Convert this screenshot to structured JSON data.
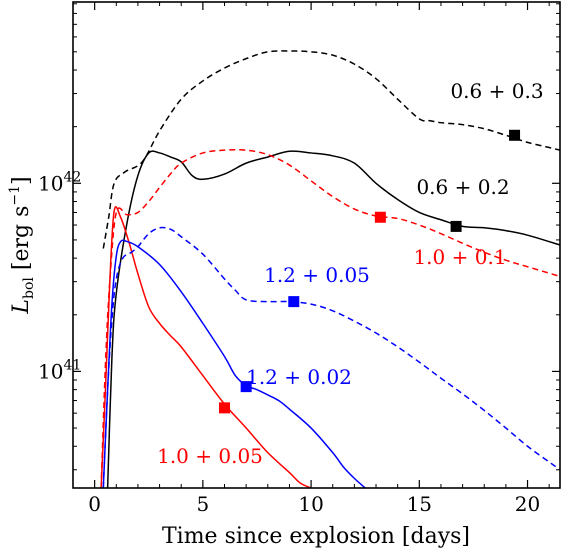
{
  "chart_data": {
    "type": "line",
    "title": "",
    "xlabel": "Time since explosion [days]",
    "ylabel_main": "L",
    "ylabel_sub": "bol",
    "ylabel_units_open": " [erg s",
    "ylabel_units_exp": "−1",
    "ylabel_units_close": "]",
    "xlim": [
      -1,
      21.5
    ],
    "ylim": [
      2.4e+40,
      9.2e+42
    ],
    "yscale": "log",
    "xticks": [
      0,
      5,
      10,
      15,
      20
    ],
    "xtick_labels": [
      "0",
      "5",
      "10",
      "15",
      "20"
    ],
    "ytick_major": [
      {
        "value": 1e+41,
        "base": "10",
        "exp": "41"
      },
      {
        "value": 1e+42,
        "base": "10",
        "exp": "42"
      }
    ],
    "grid": false,
    "legend": "none",
    "series": [
      {
        "name": "0.6 + 0.3",
        "color": "#000000",
        "linestyle": "dashed",
        "x": [
          0.4,
          0.65,
          0.9,
          1.4,
          2.2,
          3.0,
          4.0,
          5.0,
          6.0,
          7.0,
          8.0,
          9.0,
          10.0,
          11.0,
          12.0,
          13.0,
          14.0,
          15.0,
          15.5,
          16.0,
          17.0,
          18.0,
          19.0,
          20.0,
          21.0,
          21.5
        ],
        "y": [
          4.5e+41,
          6.6e+41,
          1e+42,
          1.15e+42,
          1.3e+42,
          1.9e+42,
          2.8e+42,
          3.5e+42,
          4.1e+42,
          4.6e+42,
          5e+42,
          5.05e+42,
          5e+42,
          4.8e+42,
          4.3e+42,
          3.6e+42,
          2.8e+42,
          2.2e+42,
          2.15e+42,
          2.1e+42,
          2.05e+42,
          1.95e+42,
          1.8e+42,
          1.65e+42,
          1.55e+42,
          1.5e+42
        ],
        "marker": {
          "x": 19.4,
          "y": 1.8e+42
        }
      },
      {
        "name": "0.6 + 0.2",
        "color": "#000000",
        "linestyle": "solid",
        "x": [
          0.6,
          0.8,
          1.0,
          1.5,
          2.0,
          2.5,
          3.0,
          3.5,
          4.0,
          4.5,
          5.0,
          6.0,
          7.0,
          8.0,
          9.0,
          10.0,
          11.0,
          12.0,
          13.0,
          14.0,
          15.0,
          16.0,
          17.0,
          18.0,
          19.0,
          20.0,
          21.5
        ],
        "y": [
          2.4e+40,
          1.2e+41,
          2.6e+41,
          6.2e+41,
          1.1e+42,
          1.45e+42,
          1.45e+42,
          1.38e+42,
          1.3e+42,
          1.1e+42,
          1.05e+42,
          1.12e+42,
          1.28e+42,
          1.38e+42,
          1.48e+42,
          1.45e+42,
          1.4e+42,
          1.28e+42,
          1e+42,
          8.2e+41,
          7e+41,
          6.4e+41,
          5.9e+41,
          5.8e+41,
          5.6e+41,
          5.3e+41,
          4.7e+41
        ],
        "marker": {
          "x": 16.7,
          "y": 5.9e+41
        }
      },
      {
        "name": "1.0 + 0.1",
        "color": "#ff0000",
        "linestyle": "dashed",
        "x": [
          0.3,
          0.5,
          0.7,
          1.0,
          1.5,
          2.0,
          2.5,
          3.0,
          3.5,
          4.0,
          5.0,
          6.0,
          7.0,
          8.0,
          9.0,
          10.0,
          11.0,
          12.0,
          13.0,
          14.0,
          15.0,
          16.0,
          17.0,
          18.0,
          19.0,
          20.0,
          21.5
        ],
        "y": [
          2.4e+40,
          1.1e+41,
          3e+41,
          7e+41,
          6.8e+41,
          7e+41,
          8e+41,
          9.5e+41,
          1.12e+42,
          1.28e+42,
          1.45e+42,
          1.5e+42,
          1.5e+42,
          1.42e+42,
          1.25e+42,
          1.03e+42,
          8.5e+41,
          7.3e+41,
          6.7e+41,
          6.5e+41,
          6e+41,
          5.4e+41,
          4.8e+41,
          4.3e+41,
          3.9e+41,
          3.6e+41,
          3.2e+41
        ],
        "marker": {
          "x": 13.2,
          "y": 6.6e+41
        }
      },
      {
        "name": "1.0 + 0.05",
        "color": "#ff0000",
        "linestyle": "solid",
        "x": [
          0.3,
          0.5,
          0.7,
          0.9,
          1.2,
          1.6,
          2.0,
          2.5,
          3.0,
          3.5,
          4.0,
          5.0,
          6.0,
          7.0,
          8.0,
          9.0,
          9.5,
          10.0
        ],
        "y": [
          2.4e+40,
          8e+40,
          3e+41,
          7.1e+41,
          6.6e+41,
          4.8e+41,
          3.3e+41,
          2.2e+41,
          1.8e+41,
          1.55e+41,
          1.35e+41,
          9.5e+40,
          6.7e+40,
          5e+40,
          3.7e+40,
          2.9e+40,
          2.55e+40,
          2.4e+40
        ],
        "marker": {
          "x": 6.0,
          "y": 6.4e+40
        }
      },
      {
        "name": "1.2 + 0.05",
        "color": "#0000ff",
        "linestyle": "dashed",
        "x": [
          0.4,
          0.6,
          0.8,
          1.0,
          1.3,
          1.7,
          2.0,
          2.5,
          3.0,
          3.5,
          4.0,
          5.0,
          6.0,
          6.5,
          7.0,
          8.0,
          9.0,
          10.0,
          11.0,
          12.0,
          13.0,
          14.0,
          15.0,
          16.0,
          17.0,
          18.0,
          19.0,
          20.0,
          21.0,
          21.5
        ],
        "y": [
          2.4e+40,
          8e+40,
          1.9e+41,
          3.1e+41,
          4e+41,
          4.3e+41,
          4.6e+41,
          5.4e+41,
          5.8e+41,
          5.7e+41,
          5.2e+41,
          4.2e+41,
          3.1e+41,
          2.7e+41,
          2.4e+41,
          2.35e+41,
          2.35e+41,
          2.28e+41,
          2.1e+41,
          1.85e+41,
          1.6e+41,
          1.35e+41,
          1.12e+41,
          9.2e+40,
          7.6e+40,
          6.2e+40,
          5e+40,
          4e+40,
          3.3e+40,
          3e+40
        ],
        "marker": {
          "x": 9.2,
          "y": 2.35e+41
        }
      },
      {
        "name": "1.2 + 0.02",
        "color": "#0000ff",
        "linestyle": "solid",
        "x": [
          0.4,
          0.6,
          0.8,
          1.0,
          1.2,
          1.5,
          2.0,
          3.0,
          4.0,
          5.0,
          6.0,
          6.5,
          7.0,
          7.5,
          8.0,
          8.5,
          9.0,
          10.0,
          11.0,
          11.5,
          12.0,
          12.5
        ],
        "y": [
          2.4e+40,
          8e+40,
          2.3e+41,
          4.1e+41,
          4.9e+41,
          4.9e+41,
          4.6e+41,
          3.7e+41,
          2.65e+41,
          1.8e+41,
          1.2e+41,
          9.5e+40,
          8.4e+40,
          8e+40,
          7.5e+40,
          7e+40,
          6.3e+40,
          5e+40,
          3.7e+40,
          3.1e+40,
          2.7e+40,
          2.4e+40
        ],
        "marker": {
          "x": 7.0,
          "y": 8.3e+40
        }
      }
    ],
    "annotations": [
      {
        "text": "0.6 + 0.3",
        "color": "#000000",
        "series": "0.6 + 0.3"
      },
      {
        "text": "0.6 + 0.2",
        "color": "#000000",
        "series": "0.6 + 0.2"
      },
      {
        "text": "1.0 + 0.1",
        "color": "#ff0000",
        "series": "1.0 + 0.1"
      },
      {
        "text": "1.2 + 0.05",
        "color": "#0000ff",
        "series": "1.2 + 0.05"
      },
      {
        "text": "1.2 + 0.02",
        "color": "#0000ff",
        "series": "1.2 + 0.02"
      },
      {
        "text": "1.0 + 0.05",
        "color": "#ff0000",
        "series": "1.0 + 0.05"
      }
    ]
  }
}
